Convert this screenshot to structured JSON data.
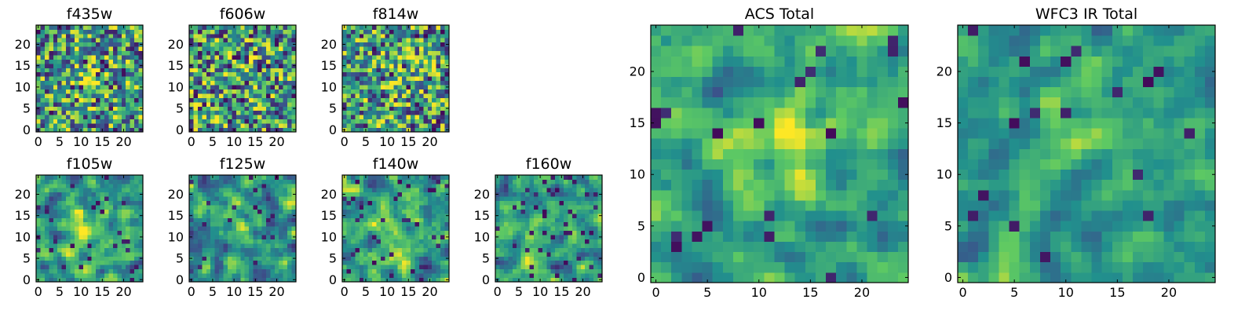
{
  "colormap": {
    "name": "viridis",
    "stops": [
      "#440154",
      "#3b528b",
      "#21908d",
      "#5dc963",
      "#fde725"
    ]
  },
  "chart_data": [
    {
      "type": "heatmap",
      "title": "f435w",
      "xlim": [
        0,
        24
      ],
      "ylim": [
        0,
        24
      ],
      "xticks": [
        "0",
        "5",
        "10",
        "15",
        "20"
      ],
      "yticks": [
        "0",
        "5",
        "10",
        "15",
        "20"
      ],
      "grid_size": 25,
      "seed": 101,
      "smooth": 0,
      "noise": 0.46,
      "blob": [
        12,
        13
      ],
      "blob_strength": 0.22,
      "low_frac": 0.07
    },
    {
      "type": "heatmap",
      "title": "f606w",
      "xlim": [
        0,
        24
      ],
      "ylim": [
        0,
        24
      ],
      "xticks": [
        "0",
        "5",
        "10",
        "15",
        "20"
      ],
      "yticks": [
        "0",
        "5",
        "10",
        "15",
        "20"
      ],
      "grid_size": 25,
      "seed": 202,
      "smooth": 0,
      "noise": 0.46,
      "blob": [
        12,
        14
      ],
      "blob_strength": 0.18,
      "low_frac": 0.08
    },
    {
      "type": "heatmap",
      "title": "f814w",
      "xlim": [
        0,
        24
      ],
      "ylim": [
        0,
        24
      ],
      "xticks": [
        "0",
        "5",
        "10",
        "15",
        "20"
      ],
      "yticks": [
        "0",
        "5",
        "10",
        "15",
        "20"
      ],
      "grid_size": 25,
      "seed": 303,
      "smooth": 0,
      "noise": 0.44,
      "blob": [
        12,
        13
      ],
      "blob_strength": 0.22,
      "low_frac": 0.07
    },
    {
      "type": "heatmap",
      "title": "f105w",
      "xlim": [
        0,
        24
      ],
      "ylim": [
        0,
        24
      ],
      "xticks": [
        "0",
        "5",
        "10",
        "15",
        "20"
      ],
      "yticks": [
        "0",
        "5",
        "10",
        "15",
        "20"
      ],
      "grid_size": 25,
      "seed": 404,
      "smooth": 1,
      "noise": 0.4,
      "blob": [
        12,
        11
      ],
      "blob_strength": 0.28,
      "low_frac": 0.05
    },
    {
      "type": "heatmap",
      "title": "f125w",
      "xlim": [
        0,
        24
      ],
      "ylim": [
        0,
        24
      ],
      "xticks": [
        "0",
        "5",
        "10",
        "15",
        "20"
      ],
      "yticks": [
        "0",
        "5",
        "10",
        "15",
        "20"
      ],
      "grid_size": 25,
      "seed": 505,
      "smooth": 1,
      "noise": 0.4,
      "blob": [
        10,
        15
      ],
      "blob_strength": 0.25,
      "low_frac": 0.04
    },
    {
      "type": "heatmap",
      "title": "f140w",
      "xlim": [
        0,
        24
      ],
      "ylim": [
        0,
        24
      ],
      "xticks": [
        "0",
        "5",
        "10",
        "15",
        "20"
      ],
      "yticks": [
        "0",
        "5",
        "10",
        "15",
        "20"
      ],
      "grid_size": 25,
      "seed": 606,
      "smooth": 1,
      "noise": 0.42,
      "blob": [
        12,
        13
      ],
      "blob_strength": 0.22,
      "low_frac": 0.06
    },
    {
      "type": "heatmap",
      "title": "f160w",
      "xlim": [
        0,
        24
      ],
      "ylim": [
        0,
        24
      ],
      "xticks": [
        "0",
        "5",
        "10",
        "15",
        "20"
      ],
      "yticks": [
        "0",
        "5",
        "10",
        "15",
        "20"
      ],
      "grid_size": 25,
      "seed": 707,
      "smooth": 1,
      "noise": 0.42,
      "blob": [
        11,
        13
      ],
      "blob_strength": 0.22,
      "low_frac": 0.06
    },
    {
      "type": "heatmap",
      "title": "ACS Total",
      "xlim": [
        0,
        24
      ],
      "ylim": [
        0,
        24
      ],
      "xticks": [
        "0",
        "5",
        "10",
        "15",
        "20"
      ],
      "yticks": [
        "0",
        "5",
        "10",
        "15",
        "20"
      ],
      "grid_size": 25,
      "seed": 808,
      "smooth": 1,
      "noise": 0.34,
      "blob": [
        11,
        14
      ],
      "blob_strength": 0.32,
      "low_frac": 0.03
    },
    {
      "type": "heatmap",
      "title": "WFC3 IR Total",
      "xlim": [
        0,
        24
      ],
      "ylim": [
        0,
        24
      ],
      "xticks": [
        "0",
        "5",
        "10",
        "15",
        "20"
      ],
      "yticks": [
        "0",
        "5",
        "10",
        "15",
        "20"
      ],
      "grid_size": 25,
      "seed": 909,
      "smooth": 1,
      "noise": 0.3,
      "blob": [
        12,
        14
      ],
      "blob_strength": 0.28,
      "low_frac": 0.03
    }
  ]
}
